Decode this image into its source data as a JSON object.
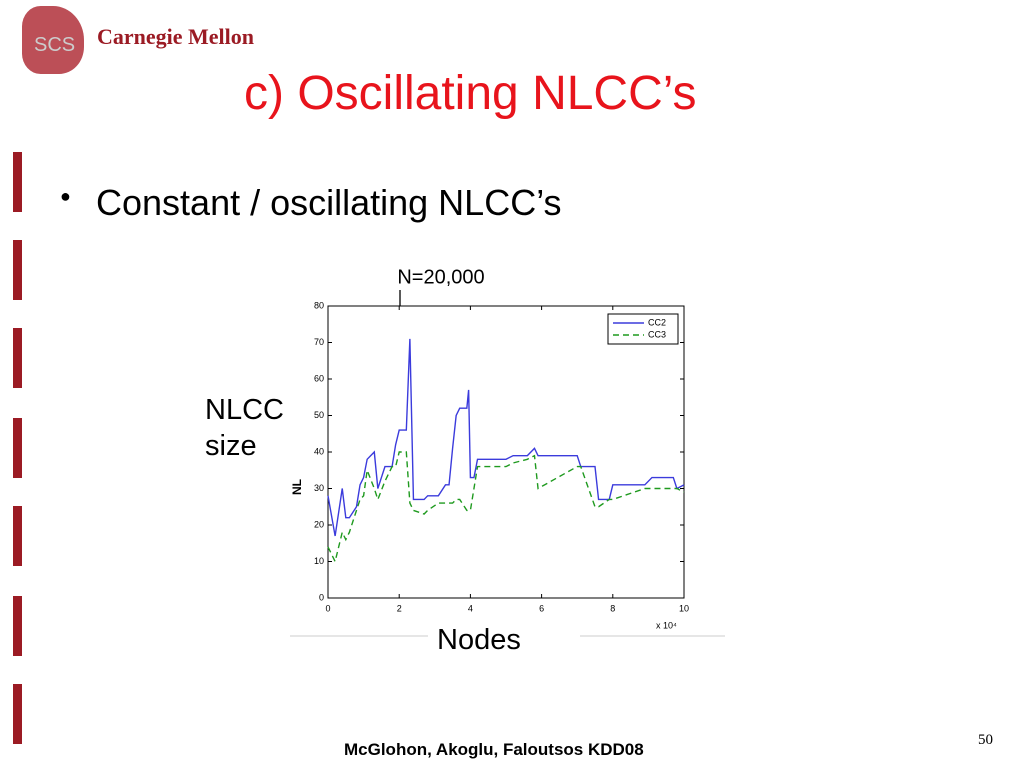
{
  "header": {
    "logo_text": "Carnegie Mellon",
    "logo_badge": "SCS",
    "title": "c) Oscillating NLCC’s"
  },
  "bullets": [
    "Constant / oscillating NLCC’s"
  ],
  "annotations": {
    "marker": "N=20,000",
    "y_caption": [
      "NLCC",
      "size"
    ],
    "x_caption": "Nodes"
  },
  "footer": {
    "credit": "McGlohon, Akoglu, Faloutsos KDD08",
    "page": "50"
  },
  "chart_data": {
    "type": "line",
    "y_label": "NL",
    "x_multiplier": "x 10⁴",
    "x": [
      0,
      0.2,
      0.4,
      0.5,
      0.6,
      0.8,
      0.9,
      1.0,
      1.1,
      1.3,
      1.4,
      1.6,
      1.8,
      1.9,
      2.0,
      2.2,
      2.3,
      2.4,
      2.7,
      2.8,
      3.1,
      3.3,
      3.4,
      3.5,
      3.6,
      3.7,
      3.9,
      3.95,
      4.0,
      4.1,
      4.2,
      5.0,
      5.2,
      5.6,
      5.8,
      5.9,
      7.0,
      7.1,
      7.5,
      7.6,
      7.9,
      8.0,
      8.9,
      9.1,
      9.7,
      9.8,
      10.0
    ],
    "series": [
      {
        "name": "CC2",
        "color": "#3b3bdc",
        "dash": false,
        "values": [
          28,
          17,
          30,
          22,
          22,
          25,
          31,
          33,
          38,
          40,
          30,
          36,
          36,
          42,
          46,
          46,
          71,
          27,
          27,
          28,
          28,
          31,
          31,
          41,
          50,
          52,
          52,
          57,
          33,
          33,
          38,
          38,
          39,
          39,
          41,
          39,
          39,
          36,
          36,
          27,
          27,
          31,
          31,
          33,
          33,
          30,
          31
        ]
      },
      {
        "name": "CC3",
        "color": "#1f9a1f",
        "dash": true,
        "values": [
          14,
          10,
          18,
          16,
          18,
          24,
          27,
          28,
          35,
          30,
          27,
          32,
          36,
          36,
          40,
          40,
          26,
          24,
          23,
          24,
          26,
          26,
          26,
          26,
          27,
          27,
          24,
          24,
          24,
          30,
          36,
          36,
          37,
          38,
          39,
          30,
          36,
          36,
          25,
          25,
          27,
          27,
          30,
          30,
          30,
          30,
          29
        ]
      }
    ],
    "xlim": [
      0,
      10
    ],
    "xticks": [
      0,
      2,
      4,
      6,
      8,
      10
    ],
    "ylim": [
      0,
      80
    ],
    "yticks": [
      0,
      10,
      20,
      30,
      40,
      50,
      60,
      70,
      80
    ],
    "grid": false,
    "legend": "top-right"
  }
}
